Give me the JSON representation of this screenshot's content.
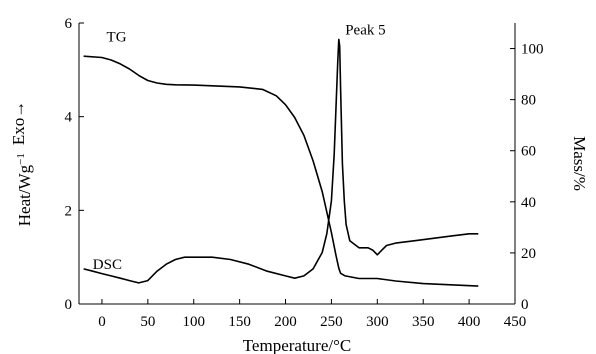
{
  "chart_data": {
    "type": "line",
    "xlabel": "Temperature/°C",
    "ylabel_left": "Heat/Wg",
    "ylabel_left_exp": "−1",
    "ylabel_left_suffix": "Exo→",
    "ylabel_right": "Mass/%",
    "xlim": [
      -25,
      450
    ],
    "ylim_left": [
      0,
      6
    ],
    "ylim_right": [
      0,
      110
    ],
    "x_ticks": [
      0,
      50,
      100,
      150,
      200,
      250,
      300,
      350,
      400,
      450
    ],
    "y_left_ticks": [
      0,
      2,
      4,
      6
    ],
    "y_right_ticks": [
      0,
      20,
      40,
      60,
      80,
      100
    ],
    "grid": false,
    "annotations": [
      {
        "text": "TG",
        "x": 5,
        "y": 5.6,
        "axis": "left"
      },
      {
        "text": "DSC",
        "x": -10,
        "y": 0.75,
        "axis": "left"
      },
      {
        "text": "Peak 5",
        "x": 265,
        "y": 5.75,
        "axis": "left"
      }
    ],
    "series": [
      {
        "name": "TG",
        "axis": "right",
        "x": [
          -20,
          0,
          10,
          20,
          30,
          40,
          50,
          60,
          70,
          80,
          100,
          150,
          175,
          190,
          200,
          210,
          220,
          230,
          240,
          245,
          250,
          255,
          258,
          260,
          265,
          280,
          300,
          320,
          350,
          380,
          410
        ],
        "y": [
          97,
          96.5,
          95.5,
          94,
          92,
          89.5,
          87.5,
          86.5,
          86,
          85.8,
          85.7,
          85,
          84,
          81.5,
          78,
          73,
          66,
          56,
          44,
          36,
          28,
          19,
          14,
          12,
          11,
          10,
          10,
          9,
          8,
          7.5,
          7
        ]
      },
      {
        "name": "DSC",
        "axis": "left",
        "x": [
          -20,
          -10,
          0,
          10,
          20,
          30,
          40,
          50,
          60,
          70,
          80,
          90,
          100,
          120,
          140,
          160,
          180,
          200,
          210,
          220,
          230,
          240,
          245,
          250,
          253,
          255,
          257,
          258,
          259,
          260,
          261,
          262,
          264,
          266,
          270,
          280,
          290,
          295,
          300,
          305,
          310,
          320,
          340,
          360,
          380,
          400,
          410
        ],
        "y": [
          0.75,
          0.7,
          0.65,
          0.6,
          0.55,
          0.5,
          0.45,
          0.5,
          0.7,
          0.85,
          0.95,
          1.0,
          1.0,
          1.0,
          0.95,
          0.85,
          0.7,
          0.6,
          0.55,
          0.6,
          0.75,
          1.1,
          1.5,
          2.2,
          3.2,
          4.2,
          5.2,
          5.65,
          5.5,
          4.6,
          3.8,
          3.0,
          2.2,
          1.7,
          1.35,
          1.2,
          1.2,
          1.15,
          1.05,
          1.15,
          1.25,
          1.3,
          1.35,
          1.4,
          1.45,
          1.5,
          1.5
        ]
      }
    ]
  }
}
